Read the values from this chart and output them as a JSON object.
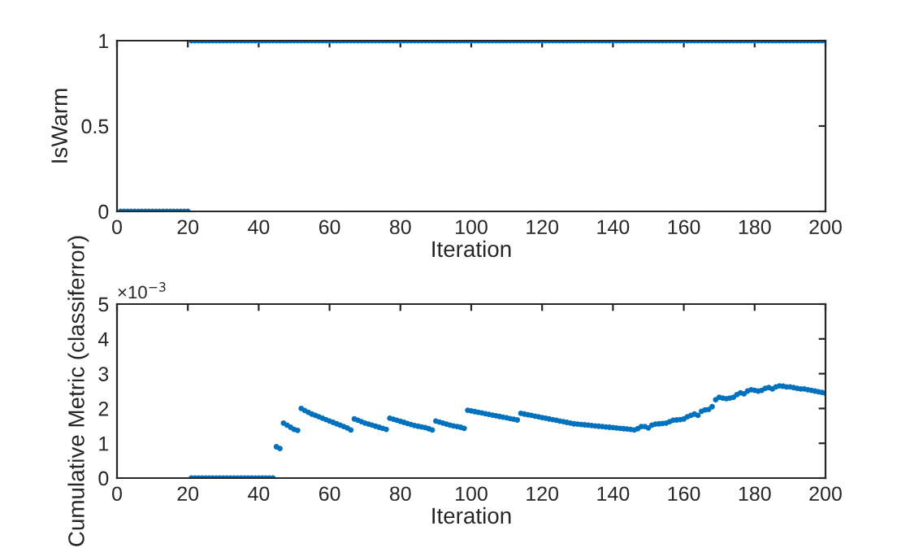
{
  "chart_data": [
    {
      "type": "scatter",
      "xlabel": "Iteration",
      "ylabel": "IsWarm",
      "xlim": [
        0,
        200
      ],
      "ylim": [
        0,
        1
      ],
      "xticks": [
        0,
        20,
        40,
        60,
        80,
        100,
        120,
        140,
        160,
        180,
        200
      ],
      "yticks": [
        0,
        0.5,
        1
      ],
      "marker": "circle",
      "grid": false,
      "legend": false,
      "series": [
        {
          "color": "#0072bd",
          "x": [
            1,
            2,
            3,
            4,
            5,
            6,
            7,
            8,
            9,
            10,
            11,
            12,
            13,
            14,
            15,
            16,
            17,
            18,
            19,
            20,
            21,
            22,
            23,
            24,
            25,
            26,
            27,
            28,
            29,
            30,
            31,
            32,
            33,
            34,
            35,
            36,
            37,
            38,
            39,
            40,
            41,
            42,
            43,
            44,
            45,
            46,
            47,
            48,
            49,
            50,
            51,
            52,
            53,
            54,
            55,
            56,
            57,
            58,
            59,
            60,
            61,
            62,
            63,
            64,
            65,
            66,
            67,
            68,
            69,
            70,
            71,
            72,
            73,
            74,
            75,
            76,
            77,
            78,
            79,
            80,
            81,
            82,
            83,
            84,
            85,
            86,
            87,
            88,
            89,
            90,
            91,
            92,
            93,
            94,
            95,
            96,
            97,
            98,
            99,
            100,
            101,
            102,
            103,
            104,
            105,
            106,
            107,
            108,
            109,
            110,
            111,
            112,
            113,
            114,
            115,
            116,
            117,
            118,
            119,
            120,
            121,
            122,
            123,
            124,
            125,
            126,
            127,
            128,
            129,
            130,
            131,
            132,
            133,
            134,
            135,
            136,
            137,
            138,
            139,
            140,
            141,
            142,
            143,
            144,
            145,
            146,
            147,
            148,
            149,
            150,
            151,
            152,
            153,
            154,
            155,
            156,
            157,
            158,
            159,
            160,
            161,
            162,
            163,
            164,
            165,
            166,
            167,
            168,
            169,
            170,
            171,
            172,
            173,
            174,
            175,
            176,
            177,
            178,
            179,
            180,
            181,
            182,
            183,
            184,
            185,
            186,
            187,
            188,
            189,
            190,
            191,
            192,
            193,
            194,
            195,
            196,
            197,
            198,
            199,
            200
          ],
          "values": [
            0,
            0,
            0,
            0,
            0,
            0,
            0,
            0,
            0,
            0,
            0,
            0,
            0,
            0,
            0,
            0,
            0,
            0,
            0,
            0,
            1,
            1,
            1,
            1,
            1,
            1,
            1,
            1,
            1,
            1,
            1,
            1,
            1,
            1,
            1,
            1,
            1,
            1,
            1,
            1,
            1,
            1,
            1,
            1,
            1,
            1,
            1,
            1,
            1,
            1,
            1,
            1,
            1,
            1,
            1,
            1,
            1,
            1,
            1,
            1,
            1,
            1,
            1,
            1,
            1,
            1,
            1,
            1,
            1,
            1,
            1,
            1,
            1,
            1,
            1,
            1,
            1,
            1,
            1,
            1,
            1,
            1,
            1,
            1,
            1,
            1,
            1,
            1,
            1,
            1,
            1,
            1,
            1,
            1,
            1,
            1,
            1,
            1,
            1,
            1,
            1,
            1,
            1,
            1,
            1,
            1,
            1,
            1,
            1,
            1,
            1,
            1,
            1,
            1,
            1,
            1,
            1,
            1,
            1,
            1,
            1,
            1,
            1,
            1,
            1,
            1,
            1,
            1,
            1,
            1,
            1,
            1,
            1,
            1,
            1,
            1,
            1,
            1,
            1,
            1,
            1,
            1,
            1,
            1,
            1,
            1,
            1,
            1,
            1,
            1,
            1,
            1,
            1,
            1,
            1,
            1,
            1,
            1,
            1,
            1,
            1,
            1,
            1,
            1,
            1,
            1,
            1,
            1,
            1,
            1,
            1,
            1,
            1,
            1,
            1,
            1,
            1,
            1,
            1,
            1,
            1,
            1,
            1,
            1,
            1,
            1,
            1,
            1,
            1,
            1,
            1,
            1,
            1,
            1,
            1,
            1,
            1,
            1,
            1,
            1
          ]
        }
      ]
    },
    {
      "type": "scatter",
      "xlabel": "Iteration",
      "ylabel": "Cumulative Metric (classiferror)",
      "annotations": [
        "×10$^{−3}$"
      ],
      "xlim": [
        0,
        200
      ],
      "ylim": [
        0,
        5
      ],
      "xticks": [
        0,
        20,
        40,
        60,
        80,
        100,
        120,
        140,
        160,
        180,
        200
      ],
      "yticks": [
        0,
        1,
        2,
        3,
        4,
        5
      ],
      "marker": "circle",
      "grid": false,
      "legend": false,
      "series": [
        {
          "color": "#0072bd",
          "x": [
            21,
            22,
            23,
            24,
            25,
            26,
            27,
            28,
            29,
            30,
            31,
            32,
            33,
            34,
            35,
            36,
            37,
            38,
            39,
            40,
            41,
            42,
            43,
            44,
            45,
            46,
            47,
            48,
            49,
            50,
            51,
            52,
            53,
            54,
            55,
            56,
            57,
            58,
            59,
            60,
            61,
            62,
            63,
            64,
            65,
            66,
            67,
            68,
            69,
            70,
            71,
            72,
            73,
            74,
            75,
            76,
            77,
            78,
            79,
            80,
            81,
            82,
            83,
            84,
            85,
            86,
            87,
            88,
            89,
            90,
            91,
            92,
            93,
            94,
            95,
            96,
            97,
            98,
            99,
            100,
            101,
            102,
            103,
            104,
            105,
            106,
            107,
            108,
            109,
            110,
            111,
            112,
            113,
            114,
            115,
            116,
            117,
            118,
            119,
            120,
            121,
            122,
            123,
            124,
            125,
            126,
            127,
            128,
            129,
            130,
            131,
            132,
            133,
            134,
            135,
            136,
            137,
            138,
            139,
            140,
            141,
            142,
            143,
            144,
            145,
            146,
            147,
            148,
            149,
            150,
            151,
            152,
            153,
            154,
            155,
            156,
            157,
            158,
            159,
            160,
            161,
            162,
            163,
            164,
            165,
            166,
            167,
            168,
            169,
            170,
            171,
            172,
            173,
            174,
            175,
            176,
            177,
            178,
            179,
            180,
            181,
            182,
            183,
            184,
            185,
            186,
            187,
            188,
            189,
            190,
            191,
            192,
            193,
            194,
            195,
            196,
            197,
            198,
            199,
            200
          ],
          "values": [
            0,
            0,
            0,
            0,
            0,
            0,
            0,
            0,
            0,
            0,
            0,
            0,
            0,
            0,
            0,
            0,
            0,
            0,
            0,
            0,
            0,
            0,
            0,
            0,
            0.9,
            0.85,
            1.58,
            1.52,
            1.46,
            1.4,
            1.37,
            2.0,
            1.94,
            1.89,
            1.84,
            1.8,
            1.76,
            1.72,
            1.68,
            1.64,
            1.6,
            1.56,
            1.52,
            1.48,
            1.44,
            1.38,
            1.7,
            1.66,
            1.62,
            1.58,
            1.55,
            1.52,
            1.49,
            1.46,
            1.43,
            1.4,
            1.72,
            1.69,
            1.66,
            1.63,
            1.6,
            1.57,
            1.54,
            1.51,
            1.49,
            1.47,
            1.45,
            1.42,
            1.38,
            1.64,
            1.61,
            1.58,
            1.55,
            1.52,
            1.5,
            1.48,
            1.46,
            1.43,
            1.95,
            1.93,
            1.91,
            1.89,
            1.87,
            1.85,
            1.83,
            1.81,
            1.79,
            1.77,
            1.75,
            1.73,
            1.71,
            1.69,
            1.67,
            1.86,
            1.84,
            1.82,
            1.8,
            1.78,
            1.76,
            1.74,
            1.72,
            1.7,
            1.68,
            1.66,
            1.64,
            1.62,
            1.6,
            1.58,
            1.56,
            1.55,
            1.54,
            1.53,
            1.52,
            1.51,
            1.5,
            1.49,
            1.48,
            1.47,
            1.46,
            1.45,
            1.44,
            1.43,
            1.42,
            1.41,
            1.4,
            1.38,
            1.42,
            1.48,
            1.48,
            1.44,
            1.52,
            1.55,
            1.56,
            1.57,
            1.58,
            1.62,
            1.66,
            1.67,
            1.68,
            1.7,
            1.76,
            1.8,
            1.84,
            1.8,
            1.92,
            1.96,
            1.97,
            2.05,
            2.25,
            2.32,
            2.3,
            2.28,
            2.3,
            2.32,
            2.4,
            2.45,
            2.42,
            2.5,
            2.54,
            2.52,
            2.5,
            2.52,
            2.58,
            2.6,
            2.56,
            2.62,
            2.65,
            2.64,
            2.62,
            2.62,
            2.6,
            2.58,
            2.56,
            2.56,
            2.54,
            2.52,
            2.5,
            2.48,
            2.46,
            2.44
          ]
        }
      ]
    }
  ]
}
